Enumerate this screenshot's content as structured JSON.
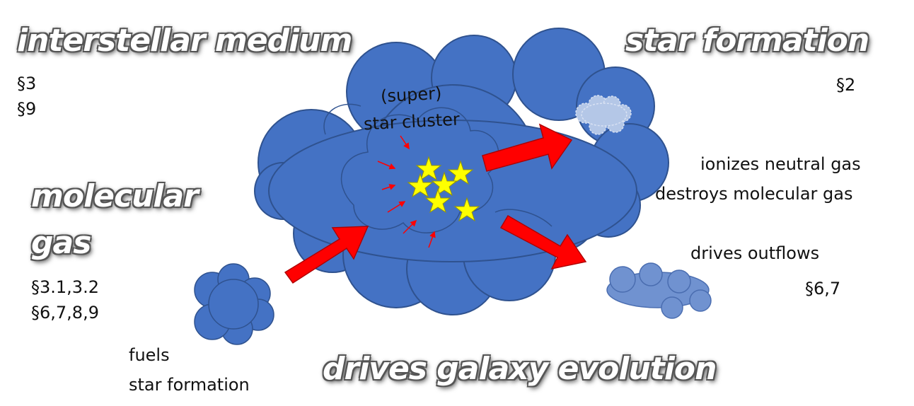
{
  "titles": {
    "ism": "interstellar medium",
    "star_formation": "star formation",
    "molecular_line1": "molecular",
    "molecular_line2": "gas",
    "galaxy_evolution": "drives galaxy evolution"
  },
  "labels": {
    "ism_sections_1": "§3",
    "ism_sections_2": "§9",
    "sf_section": "§2",
    "cluster_line1": "(super)",
    "cluster_line2": "star cluster",
    "ionizes": "ionizes neutral gas",
    "destroys": "destroys molecular gas",
    "outflows": "drives outflows",
    "outflow_sections": "§6,7",
    "mol_sections_1": "§3.1,3.2",
    "mol_sections_2": "§6,7,8,9",
    "fuels_1": "fuels",
    "fuels_2": "star formation"
  },
  "colors": {
    "cloud_blue": "#4472c4",
    "cloud_outline": "#2f528f",
    "light_cloud": "#b4c7e7",
    "outflow_cloud": "#7092d0",
    "arrow_red": "#ff0000",
    "star_yellow": "#ffff00"
  },
  "icons": [
    "star-icon",
    "arrow-icon",
    "cloud-icon"
  ]
}
